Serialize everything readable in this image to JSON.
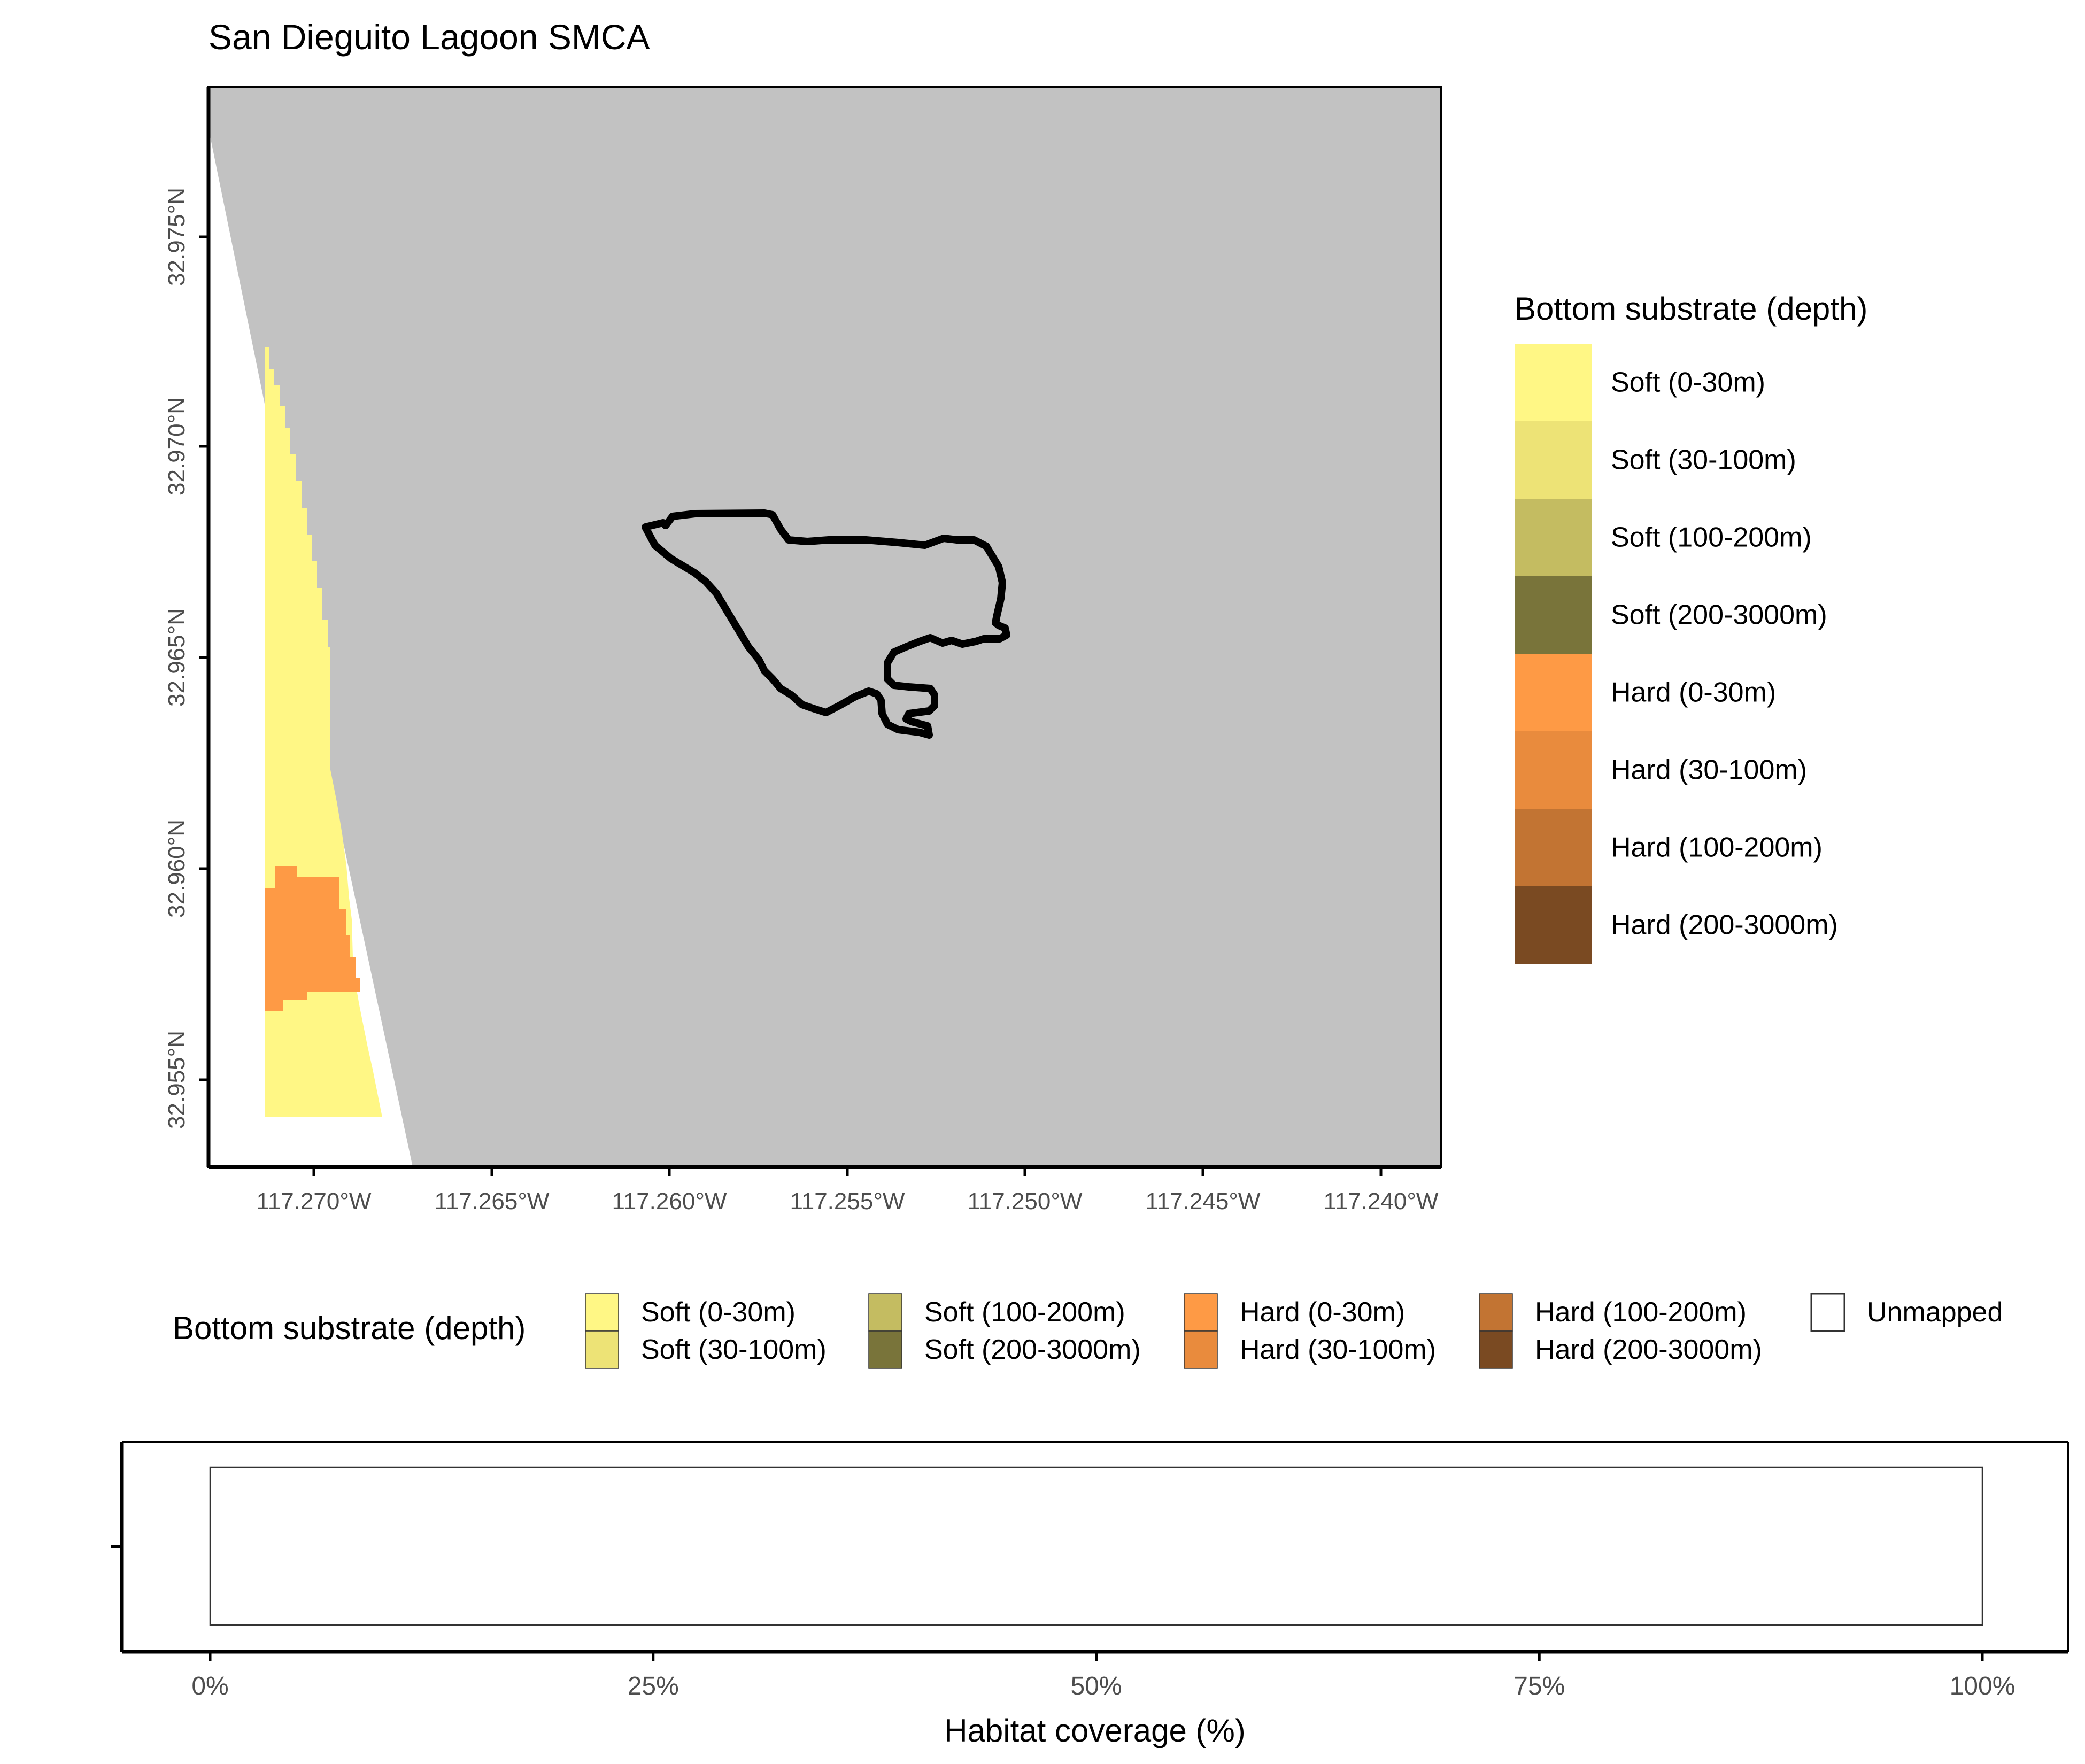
{
  "map": {
    "title": "San Dieguito Lagoon SMCA",
    "lon_ticks": [
      "117.270°W",
      "117.265°W",
      "117.260°W",
      "117.255°W",
      "117.250°W",
      "117.245°W",
      "117.240°W"
    ],
    "lat_ticks": [
      "32.955°N",
      "32.960°N",
      "32.965°N",
      "32.970°N",
      "32.975°N"
    ],
    "colors": {
      "land": "#c2c2c2",
      "soft_0_30": "#fff785",
      "hard_0_30": "#fe9a45",
      "boundary": "#000000"
    }
  },
  "legend_right": {
    "title": "Bottom substrate (depth)",
    "items": [
      {
        "label": "Soft (0-30m)",
        "color": "#fff785"
      },
      {
        "label": "Soft (30-100m)",
        "color": "#ede376"
      },
      {
        "label": "Soft (100-200m)",
        "color": "#c4bc61"
      },
      {
        "label": "Soft (200-3000m)",
        "color": "#79743a"
      },
      {
        "label": "Hard (0-30m)",
        "color": "#fe9a45"
      },
      {
        "label": "Hard (30-100m)",
        "color": "#e98b3d"
      },
      {
        "label": "Hard (100-200m)",
        "color": "#c27433"
      },
      {
        "label": "Hard (200-3000m)",
        "color": "#7a4a22"
      }
    ]
  },
  "legend_bottom": {
    "title": "Bottom substrate (depth)",
    "items": [
      {
        "label": "Soft (0-30m)",
        "color": "#fff785"
      },
      {
        "label": "Soft (30-100m)",
        "color": "#ede376"
      },
      {
        "label": "Soft (100-200m)",
        "color": "#c4bc61"
      },
      {
        "label": "Soft (200-3000m)",
        "color": "#79743a"
      },
      {
        "label": "Hard (0-30m)",
        "color": "#fe9a45"
      },
      {
        "label": "Hard (30-100m)",
        "color": "#e98b3d"
      },
      {
        "label": "Hard (100-200m)",
        "color": "#c27433"
      },
      {
        "label": "Hard (200-3000m)",
        "color": "#7a4a22"
      },
      {
        "label": "Unmapped",
        "color": "#ffffff"
      }
    ]
  },
  "chart_data": {
    "type": "bar",
    "orientation": "horizontal",
    "stacked": true,
    "xlabel": "Habitat coverage (%)",
    "ylabel": "",
    "xlim": [
      0,
      100
    ],
    "x_ticks": [
      "0%",
      "25%",
      "50%",
      "75%",
      "100%"
    ],
    "categories": [
      ""
    ],
    "series": [
      {
        "name": "Unmapped",
        "values": [
          100
        ],
        "color": "#ffffff"
      }
    ],
    "legend_position": "top"
  }
}
